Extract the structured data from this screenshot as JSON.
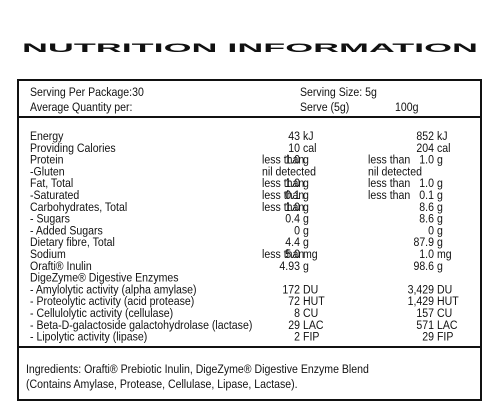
{
  "title": "NUTRITION INFORMATION",
  "serving": {
    "per_package": "Serving Per Package:30",
    "size": "Serving Size: 5g",
    "quantity_per": "Average Quantity per:",
    "serve_col": "Serve (5g)",
    "per100_col": "100g"
  },
  "rows": [
    {
      "name": "Energy",
      "serve": {
        "value": "43",
        "unit": "kJ"
      },
      "per100g": {
        "value": "852",
        "unit": "kJ"
      }
    },
    {
      "name": "Providing Calories",
      "serve": {
        "value": "10",
        "unit": "cal"
      },
      "per100g": {
        "value": "204",
        "unit": "cal"
      }
    },
    {
      "name": "Protein",
      "serve": {
        "prefix": "less than",
        "value": "1.0",
        "unit": "g"
      },
      "per100g": {
        "prefix": "less than",
        "value": "1.0",
        "unit": "g"
      }
    },
    {
      "name": "-Gluten",
      "serve": {
        "text": "nil detected"
      },
      "per100g": {
        "text": "nil detected"
      }
    },
    {
      "name": "Fat, Total",
      "serve": {
        "prefix": "less than",
        "value": "1.0",
        "unit": "g"
      },
      "per100g": {
        "prefix": "less than",
        "value": "1.0",
        "unit": "g"
      }
    },
    {
      "name": "-Saturated",
      "serve": {
        "prefix": "less than",
        "value": "0.1",
        "unit": "g"
      },
      "per100g": {
        "prefix": "less than",
        "value": "0.1",
        "unit": "g"
      }
    },
    {
      "name": "Carbohydrates, Total",
      "serve": {
        "prefix": "less than",
        "value": "1.0",
        "unit": "g"
      },
      "per100g": {
        "value": "8.6",
        "unit": "g"
      }
    },
    {
      "name": "- Sugars",
      "serve": {
        "value": "0.4",
        "unit": "g"
      },
      "per100g": {
        "value": "8.6",
        "unit": "g"
      }
    },
    {
      "name": "- Added Sugars",
      "serve": {
        "value": "0",
        "unit": "g"
      },
      "per100g": {
        "value": "0",
        "unit": "g"
      }
    },
    {
      "name": "Dietary fibre, Total",
      "serve": {
        "value": "4.4",
        "unit": "g"
      },
      "per100g": {
        "value": "87.9",
        "unit": "g"
      }
    },
    {
      "name": "Sodium",
      "serve": {
        "prefix": "less than",
        "value": "5.0",
        "unit": "mg"
      },
      "per100g": {
        "value": "1.0",
        "unit": "mg"
      }
    },
    {
      "name": "Orafti® Inulin",
      "serve": {
        "value": "4.93",
        "unit": "g"
      },
      "per100g": {
        "value": "98.6",
        "unit": "g"
      }
    },
    {
      "name": "DigeZyme® Digestive Enzymes"
    },
    {
      "name": "- Amylolytic activity (alpha amylase)",
      "serve": {
        "value": "172",
        "unit": "DU"
      },
      "per100g": {
        "value": "3,429",
        "unit": "DU"
      }
    },
    {
      "name": "- Proteolytic activity (acid protease)",
      "serve": {
        "value": "72",
        "unit": "HUT"
      },
      "per100g": {
        "value": "1,429",
        "unit": "HUT"
      }
    },
    {
      "name": "- Cellulolytic activity (cellulase)",
      "serve": {
        "value": "8",
        "unit": "CU"
      },
      "per100g": {
        "value": "157",
        "unit": "CU"
      }
    },
    {
      "name": "- Beta-D-galactoside galactohydrolase (lactase)",
      "serve": {
        "value": "29",
        "unit": "LAC"
      },
      "per100g": {
        "value": "571",
        "unit": "LAC"
      }
    },
    {
      "name": "- Lipolytic activity (lipase)",
      "serve": {
        "value": "2",
        "unit": "FIP"
      },
      "per100g": {
        "value": "29",
        "unit": "FIP"
      }
    }
  ],
  "ingredients": [
    "Ingredients: Orafti® Prebiotic Inulin, DigeZyme® Digestive Enzyme Blend",
    "(Contains Amylase, Protease, Cellulase, Lipase, Lactase)."
  ]
}
